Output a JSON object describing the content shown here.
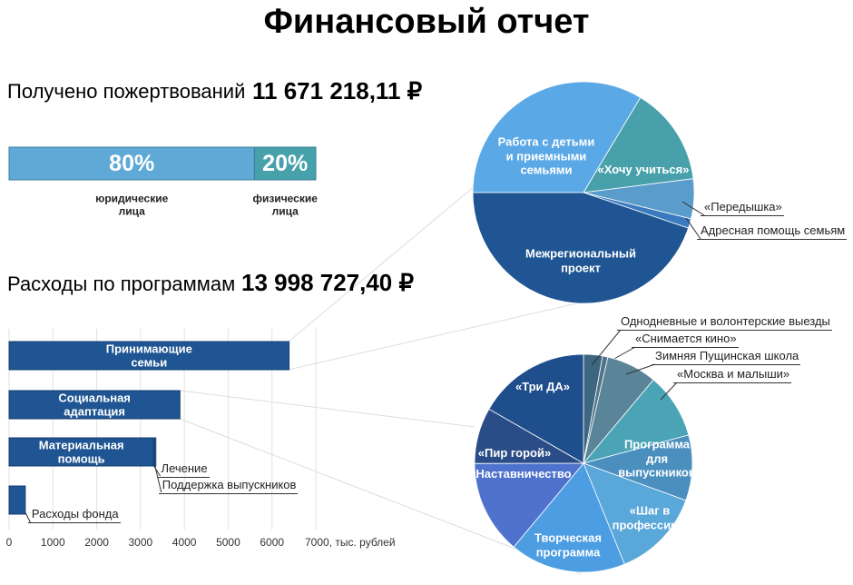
{
  "title": "Финансовый отчет",
  "donations": {
    "label": "Получено пожертвований",
    "amount": "11 671 218,11 ₽"
  },
  "expenses": {
    "label": "Расходы по программам",
    "amount": "13 998 727,40 ₽"
  },
  "chart_data": [
    {
      "type": "stacked_bar",
      "categories": [
        "юридические лица",
        "физические лица"
      ],
      "values": [
        80,
        20
      ],
      "value_labels": [
        "80%",
        "20%"
      ],
      "colors": [
        "#5fa9d6",
        "#46a1aa"
      ]
    },
    {
      "type": "hbar",
      "categories": [
        "Принимающие семьи",
        "Социальная адаптация",
        "Материальная помощь",
        "Расходы фонда"
      ],
      "series": [
        {
          "color": "#1f5592",
          "values": [
            6390,
            3900,
            3300,
            370
          ]
        },
        {
          "name": "Лечение",
          "color": "#3b74a8",
          "values": [
            null,
            null,
            25,
            null
          ]
        },
        {
          "name": "Поддержка выпускников",
          "color": "#7aa6cc",
          "values": [
            null,
            null,
            25,
            null
          ]
        }
      ],
      "xlim": [
        0,
        7000
      ],
      "xticks": [
        0,
        1000,
        2000,
        3000,
        4000,
        5000,
        6000,
        {
          "value": 7000,
          "label": "7000, тыс. рублей"
        }
      ],
      "grid": true
    },
    {
      "type": "pie",
      "categories": [
        "Работа с детьми и приемными семьями",
        "«Хочу учиться»",
        "«Передышка»",
        "Адресная помощь семьям",
        "Межрегиональный проект"
      ],
      "values": [
        33.6,
        14.4,
        5.8,
        1.4,
        44.8
      ],
      "colors": [
        "#5ba8e6",
        "#48a1aa",
        "#5a9ccc",
        "#3a7bbf",
        "#1e5592"
      ]
    },
    {
      "type": "pie",
      "categories": [
        "Однодневные и волонтерские выезды",
        "«Снимается кино»",
        "Зимняя Пущинская школа",
        "«Москва и малыши»",
        "Программа для выпускников",
        "«Шаг в профессию»",
        "Творческая программа",
        "Наставничество",
        "«Пир горой»",
        "«Три ДА»"
      ],
      "values": [
        2.8,
        0.8,
        7.5,
        9.7,
        9.7,
        13.3,
        17.2,
        13.9,
        8.3,
        16.7
      ],
      "colors": [
        "#3d6680",
        "#50758a",
        "#5a8599",
        "#4aa4b5",
        "#4b8fbf",
        "#5aa7d9",
        "#4d9de3",
        "#4f73cc",
        "#2b4d87",
        "#1f4e8c"
      ]
    }
  ]
}
